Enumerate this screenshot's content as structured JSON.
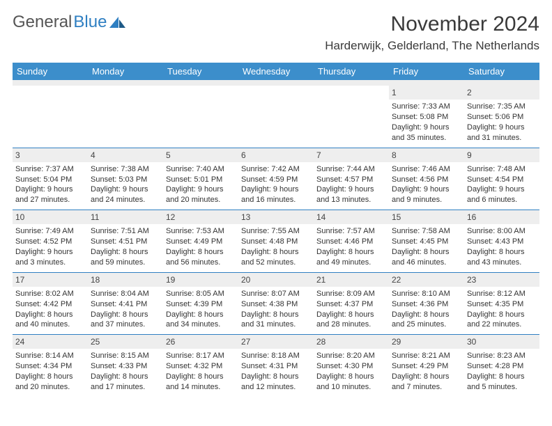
{
  "brand": {
    "part1": "General",
    "part2": "Blue"
  },
  "title": "November 2024",
  "location": "Harderwijk, Gelderland, The Netherlands",
  "colors": {
    "header_bg": "#3c8ecb",
    "rule": "#2f7fc2",
    "daynum_bg": "#eeeeee",
    "text": "#333333"
  },
  "weekdays": [
    "Sunday",
    "Monday",
    "Tuesday",
    "Wednesday",
    "Thursday",
    "Friday",
    "Saturday"
  ],
  "weeks": [
    [
      {
        "n": "",
        "sr": "",
        "ss": "",
        "d1": "",
        "d2": ""
      },
      {
        "n": "",
        "sr": "",
        "ss": "",
        "d1": "",
        "d2": ""
      },
      {
        "n": "",
        "sr": "",
        "ss": "",
        "d1": "",
        "d2": ""
      },
      {
        "n": "",
        "sr": "",
        "ss": "",
        "d1": "",
        "d2": ""
      },
      {
        "n": "",
        "sr": "",
        "ss": "",
        "d1": "",
        "d2": ""
      },
      {
        "n": "1",
        "sr": "Sunrise: 7:33 AM",
        "ss": "Sunset: 5:08 PM",
        "d1": "Daylight: 9 hours",
        "d2": "and 35 minutes."
      },
      {
        "n": "2",
        "sr": "Sunrise: 7:35 AM",
        "ss": "Sunset: 5:06 PM",
        "d1": "Daylight: 9 hours",
        "d2": "and 31 minutes."
      }
    ],
    [
      {
        "n": "3",
        "sr": "Sunrise: 7:37 AM",
        "ss": "Sunset: 5:04 PM",
        "d1": "Daylight: 9 hours",
        "d2": "and 27 minutes."
      },
      {
        "n": "4",
        "sr": "Sunrise: 7:38 AM",
        "ss": "Sunset: 5:03 PM",
        "d1": "Daylight: 9 hours",
        "d2": "and 24 minutes."
      },
      {
        "n": "5",
        "sr": "Sunrise: 7:40 AM",
        "ss": "Sunset: 5:01 PM",
        "d1": "Daylight: 9 hours",
        "d2": "and 20 minutes."
      },
      {
        "n": "6",
        "sr": "Sunrise: 7:42 AM",
        "ss": "Sunset: 4:59 PM",
        "d1": "Daylight: 9 hours",
        "d2": "and 16 minutes."
      },
      {
        "n": "7",
        "sr": "Sunrise: 7:44 AM",
        "ss": "Sunset: 4:57 PM",
        "d1": "Daylight: 9 hours",
        "d2": "and 13 minutes."
      },
      {
        "n": "8",
        "sr": "Sunrise: 7:46 AM",
        "ss": "Sunset: 4:56 PM",
        "d1": "Daylight: 9 hours",
        "d2": "and 9 minutes."
      },
      {
        "n": "9",
        "sr": "Sunrise: 7:48 AM",
        "ss": "Sunset: 4:54 PM",
        "d1": "Daylight: 9 hours",
        "d2": "and 6 minutes."
      }
    ],
    [
      {
        "n": "10",
        "sr": "Sunrise: 7:49 AM",
        "ss": "Sunset: 4:52 PM",
        "d1": "Daylight: 9 hours",
        "d2": "and 3 minutes."
      },
      {
        "n": "11",
        "sr": "Sunrise: 7:51 AM",
        "ss": "Sunset: 4:51 PM",
        "d1": "Daylight: 8 hours",
        "d2": "and 59 minutes."
      },
      {
        "n": "12",
        "sr": "Sunrise: 7:53 AM",
        "ss": "Sunset: 4:49 PM",
        "d1": "Daylight: 8 hours",
        "d2": "and 56 minutes."
      },
      {
        "n": "13",
        "sr": "Sunrise: 7:55 AM",
        "ss": "Sunset: 4:48 PM",
        "d1": "Daylight: 8 hours",
        "d2": "and 52 minutes."
      },
      {
        "n": "14",
        "sr": "Sunrise: 7:57 AM",
        "ss": "Sunset: 4:46 PM",
        "d1": "Daylight: 8 hours",
        "d2": "and 49 minutes."
      },
      {
        "n": "15",
        "sr": "Sunrise: 7:58 AM",
        "ss": "Sunset: 4:45 PM",
        "d1": "Daylight: 8 hours",
        "d2": "and 46 minutes."
      },
      {
        "n": "16",
        "sr": "Sunrise: 8:00 AM",
        "ss": "Sunset: 4:43 PM",
        "d1": "Daylight: 8 hours",
        "d2": "and 43 minutes."
      }
    ],
    [
      {
        "n": "17",
        "sr": "Sunrise: 8:02 AM",
        "ss": "Sunset: 4:42 PM",
        "d1": "Daylight: 8 hours",
        "d2": "and 40 minutes."
      },
      {
        "n": "18",
        "sr": "Sunrise: 8:04 AM",
        "ss": "Sunset: 4:41 PM",
        "d1": "Daylight: 8 hours",
        "d2": "and 37 minutes."
      },
      {
        "n": "19",
        "sr": "Sunrise: 8:05 AM",
        "ss": "Sunset: 4:39 PM",
        "d1": "Daylight: 8 hours",
        "d2": "and 34 minutes."
      },
      {
        "n": "20",
        "sr": "Sunrise: 8:07 AM",
        "ss": "Sunset: 4:38 PM",
        "d1": "Daylight: 8 hours",
        "d2": "and 31 minutes."
      },
      {
        "n": "21",
        "sr": "Sunrise: 8:09 AM",
        "ss": "Sunset: 4:37 PM",
        "d1": "Daylight: 8 hours",
        "d2": "and 28 minutes."
      },
      {
        "n": "22",
        "sr": "Sunrise: 8:10 AM",
        "ss": "Sunset: 4:36 PM",
        "d1": "Daylight: 8 hours",
        "d2": "and 25 minutes."
      },
      {
        "n": "23",
        "sr": "Sunrise: 8:12 AM",
        "ss": "Sunset: 4:35 PM",
        "d1": "Daylight: 8 hours",
        "d2": "and 22 minutes."
      }
    ],
    [
      {
        "n": "24",
        "sr": "Sunrise: 8:14 AM",
        "ss": "Sunset: 4:34 PM",
        "d1": "Daylight: 8 hours",
        "d2": "and 20 minutes."
      },
      {
        "n": "25",
        "sr": "Sunrise: 8:15 AM",
        "ss": "Sunset: 4:33 PM",
        "d1": "Daylight: 8 hours",
        "d2": "and 17 minutes."
      },
      {
        "n": "26",
        "sr": "Sunrise: 8:17 AM",
        "ss": "Sunset: 4:32 PM",
        "d1": "Daylight: 8 hours",
        "d2": "and 14 minutes."
      },
      {
        "n": "27",
        "sr": "Sunrise: 8:18 AM",
        "ss": "Sunset: 4:31 PM",
        "d1": "Daylight: 8 hours",
        "d2": "and 12 minutes."
      },
      {
        "n": "28",
        "sr": "Sunrise: 8:20 AM",
        "ss": "Sunset: 4:30 PM",
        "d1": "Daylight: 8 hours",
        "d2": "and 10 minutes."
      },
      {
        "n": "29",
        "sr": "Sunrise: 8:21 AM",
        "ss": "Sunset: 4:29 PM",
        "d1": "Daylight: 8 hours",
        "d2": "and 7 minutes."
      },
      {
        "n": "30",
        "sr": "Sunrise: 8:23 AM",
        "ss": "Sunset: 4:28 PM",
        "d1": "Daylight: 8 hours",
        "d2": "and 5 minutes."
      }
    ]
  ]
}
